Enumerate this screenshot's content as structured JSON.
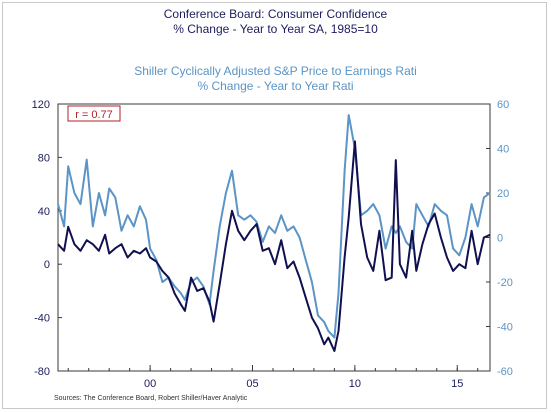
{
  "title_left_line1": "Conference Board: Consumer Confidence",
  "title_left_line2": "% Change - Year to Year    SA, 1985=10",
  "title_right_line1": "Shiller Cyclically Adjusted S&P Price to Earnings Rati",
  "title_right_line2": "% Change - Year to Year    Rati",
  "annotation": "r = 0.77",
  "source": "Sources: The Conference Board, Robert Shiller/Haver Analytic",
  "colors": {
    "confidence": "#101050",
    "cape": "#5b94c6",
    "left_axis": "#1c1c5e",
    "right_axis": "#5b94c6",
    "annotation_border": "#b0202a",
    "annotation_text": "#b0202a"
  },
  "chart_data": {
    "type": "line",
    "x_ticks": [
      {
        "year": 2000,
        "label": "00"
      },
      {
        "year": 2005,
        "label": "05"
      },
      {
        "year": 2010,
        "label": "10"
      },
      {
        "year": 2015,
        "label": "15"
      }
    ],
    "xlim": [
      1995.5,
      2016.6
    ],
    "left_axis": {
      "ylim": [
        -80,
        120
      ],
      "ticks": [
        -80,
        -40,
        0,
        40,
        80,
        120
      ]
    },
    "right_axis": {
      "ylim": [
        -60,
        60
      ],
      "ticks": [
        -60,
        -40,
        -20,
        0,
        20,
        40,
        60
      ]
    },
    "grid": false,
    "series": [
      {
        "axis": "left",
        "x": [
          1995.5,
          1995.8,
          1996.0,
          1996.3,
          1996.6,
          1996.9,
          1997.2,
          1997.5,
          1997.8,
          1998.0,
          1998.3,
          1998.6,
          1998.9,
          1999.2,
          1999.5,
          1999.8,
          2000.0,
          2000.3,
          2000.6,
          2000.9,
          2001.2,
          2001.5,
          2001.7,
          2002.0,
          2002.3,
          2002.6,
          2002.9,
          2003.1,
          2003.4,
          2003.7,
          2004.0,
          2004.3,
          2004.6,
          2004.9,
          2005.2,
          2005.5,
          2005.8,
          2006.1,
          2006.4,
          2006.7,
          2007.0,
          2007.3,
          2007.6,
          2007.9,
          2008.2,
          2008.5,
          2008.7,
          2009.0,
          2009.2,
          2009.5,
          2009.7,
          2010.0,
          2010.3,
          2010.6,
          2010.9,
          2011.2,
          2011.5,
          2011.8,
          2012.0,
          2012.2,
          2012.5,
          2012.8,
          2013.0,
          2013.3,
          2013.6,
          2013.9,
          2014.2,
          2014.5,
          2014.8,
          2015.1,
          2015.4,
          2015.7,
          2016.0,
          2016.3,
          2016.6
        ],
        "y": [
          15,
          10,
          28,
          15,
          10,
          18,
          15,
          10,
          22,
          8,
          12,
          15,
          5,
          10,
          8,
          12,
          5,
          2,
          -5,
          -10,
          -22,
          -30,
          -35,
          -10,
          -20,
          -18,
          -28,
          -43,
          -15,
          15,
          40,
          25,
          18,
          25,
          30,
          10,
          12,
          0,
          18,
          -3,
          2,
          -10,
          -25,
          -40,
          -48,
          -60,
          -55,
          -65,
          -50,
          5,
          35,
          92,
          30,
          5,
          -5,
          25,
          -12,
          -10,
          78,
          0,
          -10,
          25,
          -5,
          15,
          30,
          38,
          20,
          5,
          -5,
          0,
          -3,
          25,
          0,
          20,
          22
        ]
      },
      {
        "axis": "right",
        "name": "Shiller Cyclically Adjusted S&P Price to Earnings Rati",
        "x": [
          1995.5,
          1995.8,
          1996.0,
          1996.3,
          1996.6,
          1996.9,
          1997.2,
          1997.5,
          1997.8,
          1998.0,
          1998.3,
          1998.6,
          1998.9,
          1999.2,
          1999.5,
          1999.8,
          2000.0,
          2000.3,
          2000.6,
          2000.9,
          2001.2,
          2001.5,
          2001.7,
          2002.0,
          2002.3,
          2002.6,
          2002.9,
          2003.1,
          2003.4,
          2003.7,
          2004.0,
          2004.3,
          2004.6,
          2004.9,
          2005.2,
          2005.5,
          2005.8,
          2006.1,
          2006.4,
          2006.7,
          2007.0,
          2007.3,
          2007.6,
          2007.9,
          2008.2,
          2008.5,
          2008.7,
          2009.0,
          2009.2,
          2009.5,
          2009.7,
          2010.0,
          2010.3,
          2010.6,
          2010.9,
          2011.2,
          2011.5,
          2011.8,
          2012.0,
          2012.2,
          2012.5,
          2012.8,
          2013.0,
          2013.3,
          2013.6,
          2013.9,
          2014.2,
          2014.5,
          2014.8,
          2015.1,
          2015.4,
          2015.7,
          2016.0,
          2016.3,
          2016.6
        ],
        "y": [
          15,
          5,
          32,
          20,
          15,
          35,
          5,
          20,
          10,
          22,
          18,
          3,
          10,
          5,
          14,
          8,
          -5,
          -10,
          -20,
          -18,
          -22,
          -25,
          -28,
          -20,
          -18,
          -22,
          -30,
          -15,
          5,
          20,
          30,
          10,
          8,
          10,
          7,
          -2,
          5,
          2,
          10,
          3,
          5,
          0,
          -10,
          -20,
          -35,
          -38,
          -42,
          -45,
          -25,
          30,
          55,
          40,
          10,
          12,
          15,
          10,
          -5,
          5,
          2,
          5,
          -2,
          -5,
          15,
          10,
          5,
          15,
          12,
          10,
          -5,
          -8,
          0,
          15,
          5,
          18,
          20
        ]
      }
    ]
  }
}
